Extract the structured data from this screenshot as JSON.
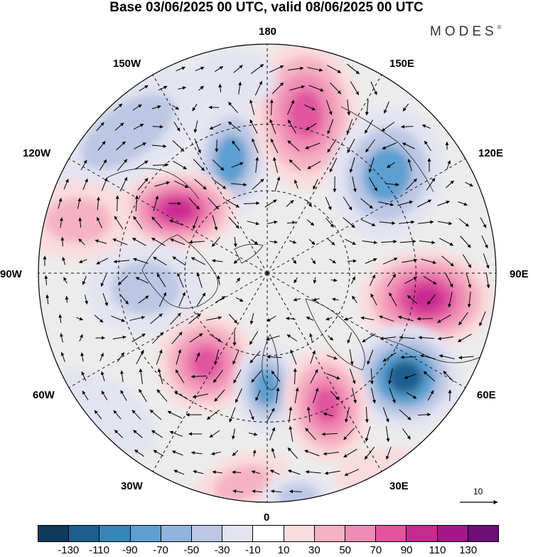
{
  "title": "Base 03/06/2025 00 UTC, valid 08/06/2025 00 UTC",
  "brand": "MODES",
  "brand_mark": "®",
  "longitude_labels": {
    "lon_180": "180",
    "lon_150E": "150E",
    "lon_120E": "120E",
    "lon_90E": "90E",
    "lon_60E": "60E",
    "lon_30E": "30E",
    "lon_0": "0",
    "lon_30W": "30W",
    "lon_60W": "60W",
    "lon_90W": "90W",
    "lon_120W": "120W",
    "lon_150W": "150W"
  },
  "reference_vector": {
    "value": "10",
    "icon": "arrow-right-icon"
  },
  "colorbar": {
    "colors": [
      "#0e3a5c",
      "#1b5f8f",
      "#3585bb",
      "#5d9fd0",
      "#8fb5dd",
      "#bcc7e4",
      "#e4e4f1",
      "#ffffff",
      "#fadbde",
      "#f5b2c4",
      "#f08cb4",
      "#e0559e",
      "#c72a90",
      "#a2188a",
      "#6e0f78"
    ],
    "tick_labels": [
      "-130",
      "-110",
      "-90",
      "-70",
      "-50",
      "-30",
      "-10",
      "10",
      "30",
      "50",
      "70",
      "90",
      "110",
      "130"
    ]
  },
  "anomaly_colors": {
    "neg_strong": "#1b5f8f",
    "neg_mid": "#5d9fd0",
    "neg_weak": "#bcc7e4",
    "neg_faint": "#e4e4f1",
    "pos_faint": "#fadbde",
    "pos_weak": "#f5b2c4",
    "pos_mid": "#f08cb4",
    "pos_strong": "#e0559e",
    "pos_max": "#c72a90"
  },
  "map_projection": "north-polar-stereographic"
}
